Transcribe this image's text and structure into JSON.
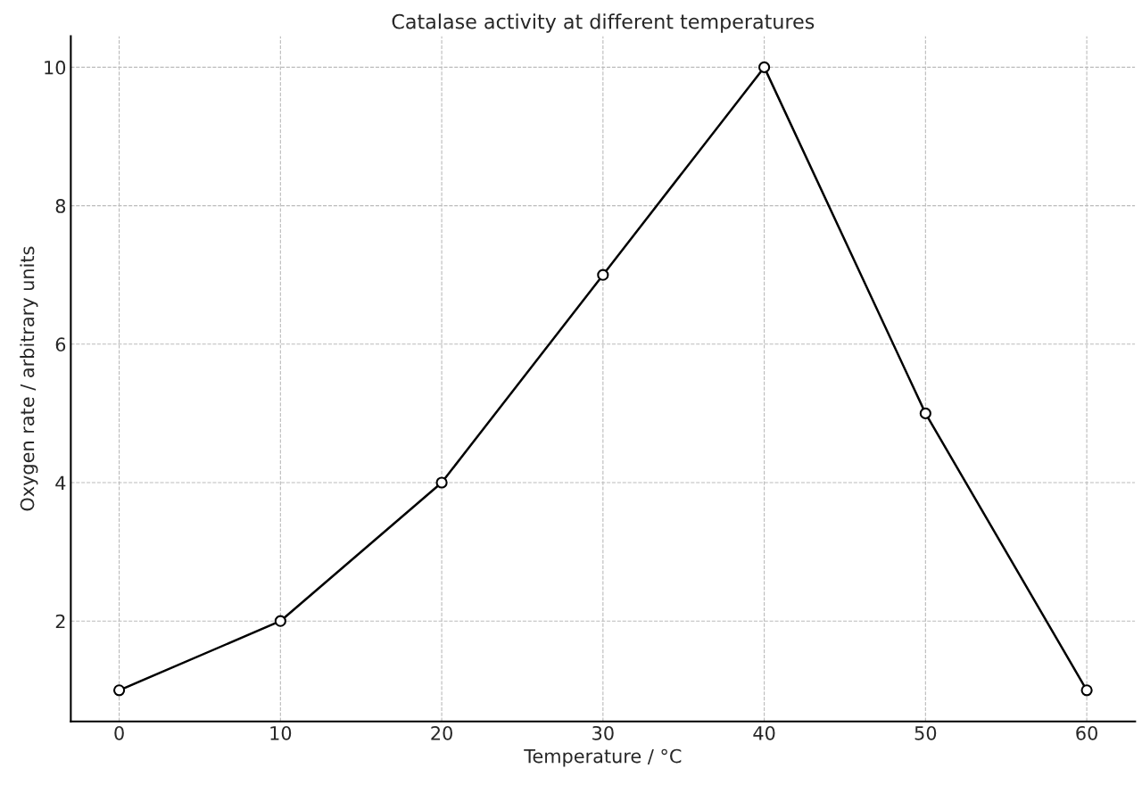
{
  "chart_data": {
    "type": "line",
    "title": "Catalase activity at different temperatures",
    "xlabel": "Temperature / °C",
    "ylabel": "Oxygen rate / arbitrary units",
    "x": [
      0,
      10,
      20,
      30,
      40,
      50,
      60
    ],
    "series": [
      {
        "color": "#000000",
        "values": [
          1,
          2,
          4,
          7,
          10,
          5,
          1
        ]
      }
    ],
    "xlim": [
      -3,
      63
    ],
    "ylim": [
      0.55,
      10.45
    ],
    "xticks": [
      0,
      10,
      20,
      30,
      40,
      50,
      60
    ],
    "yticks": [
      2,
      4,
      6,
      8,
      10
    ],
    "grid": true,
    "marker": "circle",
    "line_style": "solid"
  }
}
